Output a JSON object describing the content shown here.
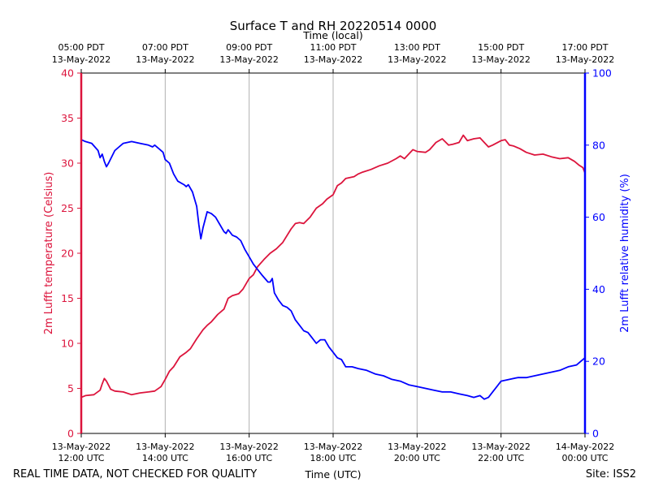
{
  "chart_data": {
    "type": "line",
    "title": "Surface T and RH 20220514 0000",
    "top_axis_label": "Time (local)",
    "xlabel": "Time (UTC)",
    "ylabel_left": "2m Lufft temperature (Celsius)",
    "ylabel_right": "2m Lufft relative humidity (%)",
    "footer_left": "REAL TIME DATA, NOT CHECKED FOR QUALITY",
    "footer_right": "Site: ISS2",
    "x_range_hours_utc": [
      12,
      24
    ],
    "ylim_left": [
      0,
      40
    ],
    "ylim_right": [
      0,
      100
    ],
    "yticks_left": [
      0,
      5,
      10,
      15,
      20,
      25,
      30,
      35,
      40
    ],
    "yticks_right": [
      0,
      20,
      40,
      60,
      80,
      100
    ],
    "grid": "vertical",
    "colors": {
      "temperature": "#dc143c",
      "humidity": "#0000ff",
      "axis": "#000000",
      "grid": "#b0b0b0"
    },
    "bottom_ticks": [
      {
        "hour": 12,
        "line1": "13-May-2022",
        "line2": "12:00 UTC"
      },
      {
        "hour": 14,
        "line1": "13-May-2022",
        "line2": "14:00 UTC"
      },
      {
        "hour": 16,
        "line1": "13-May-2022",
        "line2": "16:00 UTC"
      },
      {
        "hour": 18,
        "line1": "13-May-2022",
        "line2": "18:00 UTC"
      },
      {
        "hour": 20,
        "line1": "13-May-2022",
        "line2": "20:00 UTC"
      },
      {
        "hour": 22,
        "line1": "13-May-2022",
        "line2": "22:00 UTC"
      },
      {
        "hour": 24,
        "line1": "14-May-2022",
        "line2": "00:00 UTC"
      }
    ],
    "top_ticks": [
      {
        "hour": 12,
        "line1": "05:00 PDT",
        "line2": "13-May-2022"
      },
      {
        "hour": 14,
        "line1": "07:00 PDT",
        "line2": "13-May-2022"
      },
      {
        "hour": 16,
        "line1": "09:00 PDT",
        "line2": "13-May-2022"
      },
      {
        "hour": 18,
        "line1": "11:00 PDT",
        "line2": "13-May-2022"
      },
      {
        "hour": 20,
        "line1": "13:00 PDT",
        "line2": "13-May-2022"
      },
      {
        "hour": 22,
        "line1": "15:00 PDT",
        "line2": "13-May-2022"
      },
      {
        "hour": 24,
        "line1": "17:00 PDT",
        "line2": "13-May-2022"
      }
    ],
    "series": [
      {
        "name": "2m Lufft temperature",
        "axis": "left",
        "x": [
          12.0,
          12.1,
          12.3,
          12.45,
          12.5,
          12.55,
          12.6,
          12.7,
          12.8,
          13.0,
          13.2,
          13.4,
          13.6,
          13.75,
          13.9,
          14.0,
          14.1,
          14.2,
          14.35,
          14.5,
          14.6,
          14.75,
          14.9,
          15.0,
          15.1,
          15.25,
          15.4,
          15.5,
          15.6,
          15.75,
          15.85,
          16.0,
          16.1,
          16.2,
          16.35,
          16.5,
          16.65,
          16.8,
          17.0,
          17.1,
          17.2,
          17.3,
          17.45,
          17.6,
          17.75,
          17.85,
          18.0,
          18.1,
          18.2,
          18.3,
          18.4,
          18.5,
          18.6,
          18.7,
          18.9,
          19.1,
          19.3,
          19.5,
          19.6,
          19.7,
          19.8,
          19.9,
          20.0,
          20.2,
          20.3,
          20.45,
          20.6,
          20.75,
          20.85,
          21.0,
          21.1,
          21.2,
          21.35,
          21.5,
          21.6,
          21.7,
          21.8,
          22.0,
          22.1,
          22.2,
          22.3,
          22.45,
          22.6,
          22.8,
          23.0,
          23.2,
          23.4,
          23.6,
          23.75,
          23.85,
          23.95,
          24.0
        ],
        "values": [
          4.0,
          4.2,
          4.3,
          4.8,
          5.5,
          6.1,
          5.8,
          4.9,
          4.7,
          4.6,
          4.3,
          4.5,
          4.6,
          4.7,
          5.2,
          6.0,
          6.9,
          7.4,
          8.5,
          9.0,
          9.4,
          10.5,
          11.5,
          12.0,
          12.4,
          13.2,
          13.8,
          15.0,
          15.3,
          15.5,
          16.0,
          17.2,
          17.6,
          18.5,
          19.3,
          20.0,
          20.5,
          21.2,
          22.7,
          23.3,
          23.4,
          23.3,
          24.0,
          25.0,
          25.5,
          26.0,
          26.5,
          27.5,
          27.8,
          28.3,
          28.4,
          28.5,
          28.8,
          29.0,
          29.3,
          29.7,
          30.0,
          30.5,
          30.8,
          30.5,
          31.0,
          31.5,
          31.3,
          31.2,
          31.5,
          32.3,
          32.7,
          32.0,
          32.1,
          32.3,
          33.1,
          32.5,
          32.7,
          32.8,
          32.3,
          31.8,
          32.0,
          32.5,
          32.6,
          32.0,
          31.9,
          31.6,
          31.2,
          30.9,
          31.0,
          30.7,
          30.5,
          30.6,
          30.2,
          29.8,
          29.5,
          28.9
        ]
      },
      {
        "name": "2m Lufft relative humidity",
        "axis": "right",
        "x": [
          12.0,
          12.1,
          12.25,
          12.4,
          12.45,
          12.5,
          12.55,
          12.6,
          12.65,
          12.8,
          12.9,
          13.0,
          13.2,
          13.4,
          13.6,
          13.7,
          13.75,
          13.85,
          13.95,
          14.0,
          14.1,
          14.2,
          14.3,
          14.45,
          14.5,
          14.55,
          14.65,
          14.75,
          14.8,
          14.85,
          14.9,
          15.0,
          15.1,
          15.2,
          15.3,
          15.4,
          15.45,
          15.5,
          15.6,
          15.7,
          15.8,
          15.9,
          16.0,
          16.05,
          16.1,
          16.2,
          16.3,
          16.45,
          16.5,
          16.55,
          16.6,
          16.7,
          16.8,
          16.9,
          17.0,
          17.1,
          17.2,
          17.3,
          17.4,
          17.5,
          17.6,
          17.7,
          17.8,
          17.9,
          18.0,
          18.1,
          18.2,
          18.3,
          18.45,
          18.6,
          18.8,
          19.0,
          19.2,
          19.4,
          19.6,
          19.8,
          20.0,
          20.2,
          20.4,
          20.6,
          20.8,
          21.0,
          21.2,
          21.35,
          21.5,
          21.6,
          21.7,
          21.8,
          21.9,
          22.0,
          22.2,
          22.4,
          22.6,
          22.8,
          23.0,
          23.2,
          23.4,
          23.6,
          23.8,
          23.9,
          24.0
        ],
        "values": [
          81.5,
          81.0,
          80.5,
          78.5,
          76.5,
          77.5,
          75.5,
          74.0,
          75.0,
          78.5,
          79.5,
          80.5,
          81.0,
          80.5,
          80.0,
          79.5,
          80.0,
          79.0,
          78.0,
          76.0,
          75.0,
          72.0,
          70.0,
          69.0,
          68.5,
          69.0,
          67.0,
          63.0,
          58.0,
          54.0,
          57.0,
          61.5,
          61.0,
          60.0,
          58.0,
          56.0,
          55.5,
          56.5,
          55.0,
          54.5,
          53.5,
          51.0,
          49.0,
          48.0,
          47.0,
          45.5,
          44.0,
          42.0,
          42.0,
          43.0,
          39.0,
          37.0,
          35.5,
          35.0,
          34.0,
          31.5,
          30.0,
          28.5,
          28.0,
          26.5,
          25.0,
          26.0,
          26.0,
          24.0,
          22.5,
          21.0,
          20.5,
          18.5,
          18.5,
          18.0,
          17.5,
          16.5,
          16.0,
          15.0,
          14.5,
          13.5,
          13.0,
          12.5,
          12.0,
          11.5,
          11.5,
          11.0,
          10.5,
          10.0,
          10.5,
          9.5,
          10.0,
          11.5,
          13.0,
          14.5,
          15.0,
          15.5,
          15.5,
          16.0,
          16.5,
          17.0,
          17.5,
          18.5,
          19.0,
          20.0,
          21.0
        ]
      }
    ]
  }
}
